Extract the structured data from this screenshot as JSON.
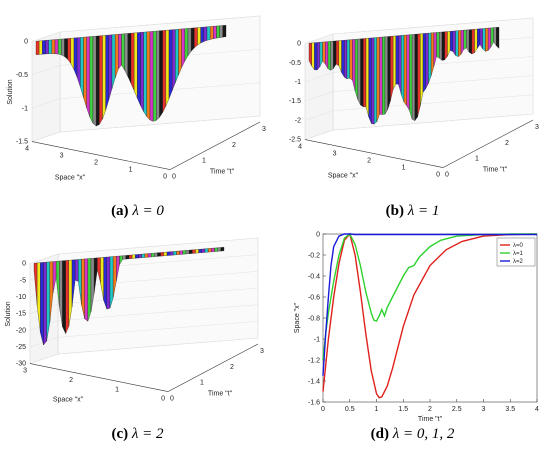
{
  "colors": {
    "red": "#e0201b",
    "green": "#2fd12f",
    "blue": "#1a1ad9",
    "panel_palette": [
      "#e6322a",
      "#f0e81c",
      "#2a2ad6",
      "#7d2bd0",
      "#1fc7c7",
      "#f27d1a",
      "#d635c8",
      "#3fd13f",
      "#8a8a8a",
      "#181818"
    ]
  },
  "panels": [
    {
      "caption_label": "(a)",
      "caption_math": "λ = 0",
      "zlabel": "Solution",
      "xlabel": "Space \"x\"",
      "ylabel": "Time \"t\"",
      "z_ticks": [
        "0",
        "-0.5",
        "-1",
        "-1.5"
      ],
      "x_ticks": [
        "4",
        "3",
        "2",
        "1",
        "0"
      ],
      "y_ticks": [
        "0",
        "1",
        "2",
        "3"
      ]
    },
    {
      "caption_label": "(b)",
      "caption_math": "λ = 1",
      "zlabel": "",
      "xlabel": "Space \"x\"",
      "ylabel": "Time \"t\"",
      "z_ticks": [
        "0",
        "-0.5",
        "-1",
        "-1.5",
        "-2",
        "-2.5"
      ],
      "x_ticks": [
        "4",
        "3",
        "2",
        "1",
        "0"
      ],
      "y_ticks": [
        "0",
        "1",
        "2",
        "3"
      ]
    },
    {
      "caption_label": "(c)",
      "caption_math": "λ = 2",
      "zlabel": "Solution",
      "xlabel": "Space \"x\"",
      "ylabel": "Time \"t\"",
      "z_ticks": [
        "0",
        "-5",
        "-10",
        "-15",
        "-20",
        "-25",
        "-30"
      ],
      "x_ticks": [
        "3",
        "2",
        "1",
        "0"
      ],
      "y_ticks": [
        "0",
        "1",
        "2",
        "3"
      ]
    },
    {
      "caption_label": "(d)",
      "caption_math": "λ = 0, 1, 2"
    }
  ],
  "chart_data": [
    {
      "type": "surface",
      "title": "(a) λ = 0",
      "xlabel": "Space \"x\"",
      "ylabel": "Time \"t\"",
      "zlabel": "Solution",
      "zlim": [
        -1.6,
        0
      ]
    },
    {
      "type": "surface",
      "title": "(b) λ = 1",
      "xlabel": "Space \"x\"",
      "ylabel": "Time \"t\"",
      "zlabel": "",
      "zlim": [
        -2.5,
        0
      ]
    },
    {
      "type": "surface",
      "title": "(c) λ = 2",
      "xlabel": "Space \"x\"",
      "ylabel": "Time \"t\"",
      "zlabel": "Solution",
      "zlim": [
        -30,
        0
      ]
    },
    {
      "type": "line",
      "title": "(d) λ = 0, 1, 2",
      "xlabel": "Time \"t\"",
      "ylabel": "Space \"x\"",
      "xlim": [
        0,
        4
      ],
      "ylim": [
        -1.6,
        0
      ],
      "x_ticks": [
        "0",
        "0.5",
        "1",
        "1.5",
        "2",
        "2.5",
        "3",
        "3.5",
        "4"
      ],
      "y_ticks": [
        "0",
        "-0.2",
        "-0.4",
        "-0.6",
        "-0.8",
        "-1",
        "-1.2",
        "-1.4",
        "-1.6"
      ],
      "legend": "top-right",
      "series": [
        {
          "name": "λ=0",
          "color": "#e0201b",
          "x": [
            0,
            0.05,
            0.1,
            0.2,
            0.3,
            0.4,
            0.5,
            0.6,
            0.7,
            0.8,
            0.9,
            1.0,
            1.05,
            1.1,
            1.2,
            1.3,
            1.4,
            1.5,
            1.7,
            2.0,
            2.3,
            2.6,
            3.0,
            3.5,
            4.0
          ],
          "y": [
            -1.5,
            -1.25,
            -1.0,
            -0.6,
            -0.28,
            -0.06,
            0,
            -0.2,
            -0.55,
            -0.95,
            -1.3,
            -1.52,
            -1.56,
            -1.55,
            -1.45,
            -1.28,
            -1.08,
            -0.88,
            -0.58,
            -0.3,
            -0.15,
            -0.07,
            -0.02,
            -0.005,
            0
          ]
        },
        {
          "name": "λ=1",
          "color": "#2fd12f",
          "x": [
            0,
            0.05,
            0.1,
            0.2,
            0.3,
            0.4,
            0.5,
            0.6,
            0.7,
            0.8,
            0.9,
            0.95,
            1.0,
            1.05,
            1.1,
            1.15,
            1.2,
            1.3,
            1.4,
            1.5,
            1.6,
            1.7,
            1.8,
            2.0,
            2.2,
            2.5,
            3.0,
            3.5,
            4.0
          ],
          "y": [
            -1.2,
            -0.95,
            -0.75,
            -0.45,
            -0.2,
            -0.04,
            0,
            -0.1,
            -0.3,
            -0.55,
            -0.75,
            -0.82,
            -0.83,
            -0.78,
            -0.72,
            -0.78,
            -0.7,
            -0.6,
            -0.5,
            -0.4,
            -0.32,
            -0.3,
            -0.22,
            -0.12,
            -0.06,
            -0.02,
            -0.005,
            0,
            0
          ]
        },
        {
          "name": "λ=2",
          "color": "#1a1ad9",
          "x": [
            0,
            0.05,
            0.1,
            0.15,
            0.2,
            0.3,
            0.4,
            0.5,
            0.6,
            0.8,
            1.0,
            1.5,
            2.0,
            3.0,
            4.0
          ],
          "y": [
            -1.35,
            -0.95,
            -0.6,
            -0.3,
            -0.12,
            -0.02,
            0,
            0,
            -0.005,
            -0.005,
            -0.005,
            -0.005,
            -0.005,
            -0.005,
            -0.005
          ]
        }
      ]
    }
  ]
}
